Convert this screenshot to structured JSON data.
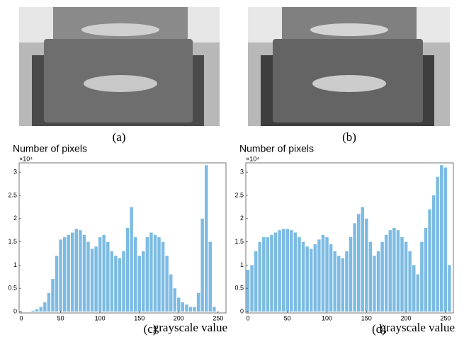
{
  "images": [
    {
      "caption": "(a)"
    },
    {
      "caption": "(b)"
    }
  ],
  "chart_data": [
    {
      "type": "bar",
      "caption": "(c)",
      "ylabel": "Number of pixels",
      "y_multiplier": "×10⁴",
      "xlabel": "grayscale value",
      "color": "#7cbbe3",
      "x": [
        0,
        5,
        10,
        15,
        20,
        25,
        30,
        35,
        40,
        45,
        50,
        55,
        60,
        65,
        70,
        75,
        80,
        85,
        90,
        95,
        100,
        105,
        110,
        115,
        120,
        125,
        130,
        135,
        140,
        145,
        150,
        155,
        160,
        165,
        170,
        175,
        180,
        185,
        190,
        195,
        200,
        205,
        210,
        215,
        220,
        225,
        230,
        235,
        240,
        245,
        250,
        255
      ],
      "values": [
        0,
        0,
        0,
        0.02,
        0.05,
        0.1,
        0.2,
        0.4,
        0.7,
        1.2,
        1.55,
        1.6,
        1.65,
        1.7,
        1.78,
        1.75,
        1.65,
        1.5,
        1.35,
        1.4,
        1.6,
        1.65,
        1.5,
        1.3,
        1.2,
        1.15,
        1.3,
        1.8,
        2.25,
        1.6,
        1.2,
        1.3,
        1.6,
        1.7,
        1.65,
        1.6,
        1.5,
        1.2,
        0.8,
        0.5,
        0.3,
        0.2,
        0.15,
        0.1,
        0.1,
        0.4,
        2.0,
        3.15,
        1.5,
        0.1,
        0,
        0
      ],
      "xlim": [
        0,
        260
      ],
      "xticks": [
        0,
        50,
        100,
        150,
        200,
        250
      ],
      "ylim": [
        0,
        3.2
      ],
      "yticks": [
        0,
        0.5,
        1,
        1.5,
        2,
        2.5,
        3
      ]
    },
    {
      "type": "bar",
      "caption": "(d)",
      "ylabel": "Number of pixels",
      "y_multiplier": "×10⁴",
      "xlabel": "grayscale value",
      "color": "#7cbbe3",
      "x": [
        0,
        5,
        10,
        15,
        20,
        25,
        30,
        35,
        40,
        45,
        50,
        55,
        60,
        65,
        70,
        75,
        80,
        85,
        90,
        95,
        100,
        105,
        110,
        115,
        120,
        125,
        130,
        135,
        140,
        145,
        150,
        155,
        160,
        165,
        170,
        175,
        180,
        185,
        190,
        195,
        200,
        205,
        210,
        215,
        220,
        225,
        230,
        235,
        240,
        245,
        250,
        255
      ],
      "values": [
        0.9,
        1.0,
        1.3,
        1.5,
        1.6,
        1.6,
        1.65,
        1.7,
        1.75,
        1.78,
        1.78,
        1.75,
        1.7,
        1.6,
        1.5,
        1.4,
        1.35,
        1.45,
        1.55,
        1.65,
        1.6,
        1.45,
        1.3,
        1.2,
        1.15,
        1.3,
        1.6,
        1.9,
        2.1,
        2.25,
        2.0,
        1.5,
        1.2,
        1.3,
        1.5,
        1.65,
        1.75,
        1.8,
        1.75,
        1.6,
        1.5,
        1.3,
        1.0,
        0.8,
        1.5,
        1.8,
        2.2,
        2.5,
        2.9,
        3.15,
        3.1,
        1.0
      ],
      "xlim": [
        0,
        260
      ],
      "xticks": [
        0,
        50,
        100,
        150,
        200,
        250
      ],
      "ylim": [
        0,
        3.2
      ],
      "yticks": [
        0,
        0.5,
        1,
        1.5,
        2,
        2.5,
        3
      ]
    }
  ]
}
